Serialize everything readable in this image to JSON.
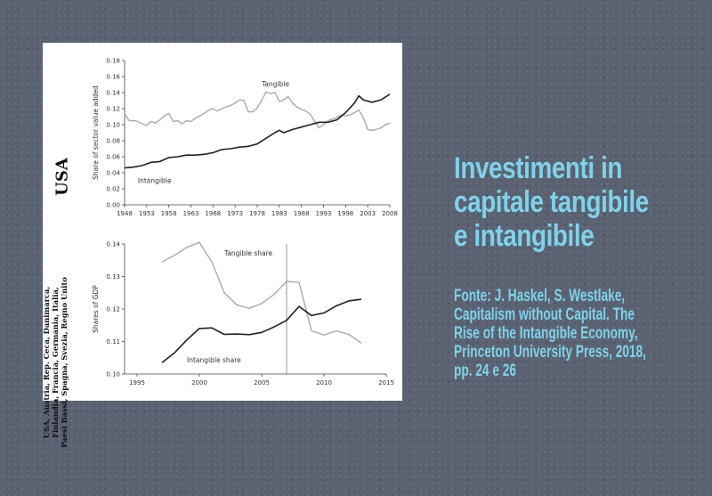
{
  "panel": {
    "country_label": "USA",
    "countries_lines": [
      "USA, Austria, Rep. Ceca, Danimarca,",
      "Finlandia, Francia, Germania, Italia,",
      "Paesi Bassi, Spagna, Svezia, Regno Unito"
    ]
  },
  "slide": {
    "title_lines": [
      "Investimenti in",
      "capitale tangibile",
      "e intangibile"
    ],
    "source_lines": [
      "Fonte: J. Haskel, S. Westlake,",
      "Capitalism without Capital. The",
      "Rise of the Intangible Economy,",
      "Princeton University Press, 2018,",
      "pp. 24 e 26"
    ]
  },
  "colors": {
    "accent": "#7ed3ea",
    "tangible": "#aaaaaa",
    "intangible": "#222222"
  },
  "chart_data": [
    {
      "type": "line",
      "title": "",
      "xlabel": "",
      "ylabel": "Share of sector value added",
      "xlim": [
        1948,
        2008
      ],
      "ylim": [
        0,
        0.18
      ],
      "x_ticks": [
        1948,
        1953,
        1958,
        1963,
        1968,
        1973,
        1978,
        1983,
        1988,
        1993,
        1998,
        2003,
        2008
      ],
      "y_ticks": [
        0.0,
        0.02,
        0.04,
        0.06,
        0.08,
        0.1,
        0.12,
        0.14,
        0.16,
        0.18
      ],
      "y_tick_labels": [
        "0.00",
        "0.02",
        "0.04",
        "0.06",
        "0.08",
        "0.10",
        "0.12",
        "0.14",
        "0.16",
        "0.18"
      ],
      "series": [
        {
          "name": "Tangible",
          "color": "#aaaaaa",
          "x": [
            1948,
            1949,
            1950,
            1951,
            1952,
            1953,
            1954,
            1955,
            1956,
            1957,
            1958,
            1959,
            1960,
            1961,
            1962,
            1963,
            1964,
            1965,
            1966,
            1967,
            1968,
            1969,
            1970,
            1971,
            1972,
            1973,
            1974,
            1975,
            1976,
            1977,
            1978,
            1979,
            1980,
            1981,
            1982,
            1983,
            1984,
            1985,
            1986,
            1987,
            1988,
            1989,
            1990,
            1991,
            1992,
            1993,
            1994,
            1995,
            1996,
            1997,
            1998,
            1999,
            2000,
            2001,
            2002,
            2003,
            2004,
            2005,
            2006,
            2007,
            2008
          ],
          "values": [
            0.114,
            0.105,
            0.105,
            0.104,
            0.101,
            0.099,
            0.104,
            0.102,
            0.106,
            0.111,
            0.114,
            0.104,
            0.105,
            0.101,
            0.105,
            0.104,
            0.108,
            0.111,
            0.114,
            0.118,
            0.12,
            0.117,
            0.12,
            0.122,
            0.124,
            0.127,
            0.131,
            0.13,
            0.116,
            0.116,
            0.121,
            0.13,
            0.141,
            0.139,
            0.14,
            0.129,
            0.131,
            0.135,
            0.127,
            0.122,
            0.119,
            0.117,
            0.113,
            0.104,
            0.096,
            0.1,
            0.105,
            0.107,
            0.109,
            0.112,
            0.111,
            0.112,
            0.115,
            0.118,
            0.109,
            0.094,
            0.093,
            0.094,
            0.096,
            0.1,
            0.102
          ],
          "label": "Tangible"
        },
        {
          "name": "Intangible",
          "color": "#222222",
          "x": [
            1948,
            1950,
            1952,
            1954,
            1956,
            1958,
            1960,
            1962,
            1964,
            1966,
            1968,
            1970,
            1972,
            1974,
            1976,
            1978,
            1980,
            1982,
            1983,
            1984,
            1986,
            1988,
            1990,
            1992,
            1994,
            1996,
            1998,
            2000,
            2001,
            2002,
            2004,
            2006,
            2008
          ],
          "values": [
            0.046,
            0.047,
            0.049,
            0.053,
            0.054,
            0.059,
            0.06,
            0.062,
            0.062,
            0.063,
            0.065,
            0.069,
            0.07,
            0.072,
            0.073,
            0.076,
            0.083,
            0.09,
            0.093,
            0.09,
            0.094,
            0.097,
            0.1,
            0.103,
            0.103,
            0.106,
            0.115,
            0.127,
            0.136,
            0.131,
            0.128,
            0.131,
            0.138
          ],
          "label": "Intangible"
        }
      ]
    },
    {
      "type": "line",
      "title": "",
      "xlabel": "",
      "ylabel": "Shares of GDP",
      "xlim": [
        1994,
        2015
      ],
      "ylim": [
        0.1,
        0.14
      ],
      "x_ticks": [
        1995,
        2000,
        2005,
        2010,
        2015
      ],
      "y_ticks": [
        0.1,
        0.11,
        0.12,
        0.13,
        0.14
      ],
      "y_tick_labels": [
        "0.10",
        "0.11",
        "0.12",
        "0.13",
        "0.14"
      ],
      "vline": 2007,
      "series": [
        {
          "name": "Tangible share",
          "color": "#aaaaaa",
          "x": [
            1997,
            1998,
            1999,
            2000,
            2001,
            2002,
            2003,
            2004,
            2005,
            2006,
            2007,
            2008,
            2009,
            2010,
            2011,
            2012,
            2013
          ],
          "values": [
            0.1345,
            0.1365,
            0.139,
            0.1405,
            0.1345,
            0.125,
            0.1213,
            0.1202,
            0.1217,
            0.1245,
            0.1285,
            0.1282,
            0.1133,
            0.112,
            0.1133,
            0.1122,
            0.1095
          ],
          "label": "Tangible share"
        },
        {
          "name": "Intangible share",
          "color": "#222222",
          "x": [
            1997,
            1998,
            1999,
            2000,
            2001,
            2002,
            2003,
            2004,
            2005,
            2006,
            2007,
            2008,
            2009,
            2010,
            2011,
            2012,
            2013
          ],
          "values": [
            0.1035,
            0.1065,
            0.1105,
            0.114,
            0.1142,
            0.1122,
            0.1123,
            0.1121,
            0.1128,
            0.1145,
            0.1165,
            0.1208,
            0.118,
            0.1188,
            0.121,
            0.1225,
            0.123
          ],
          "label": "Intangible share"
        }
      ]
    }
  ]
}
